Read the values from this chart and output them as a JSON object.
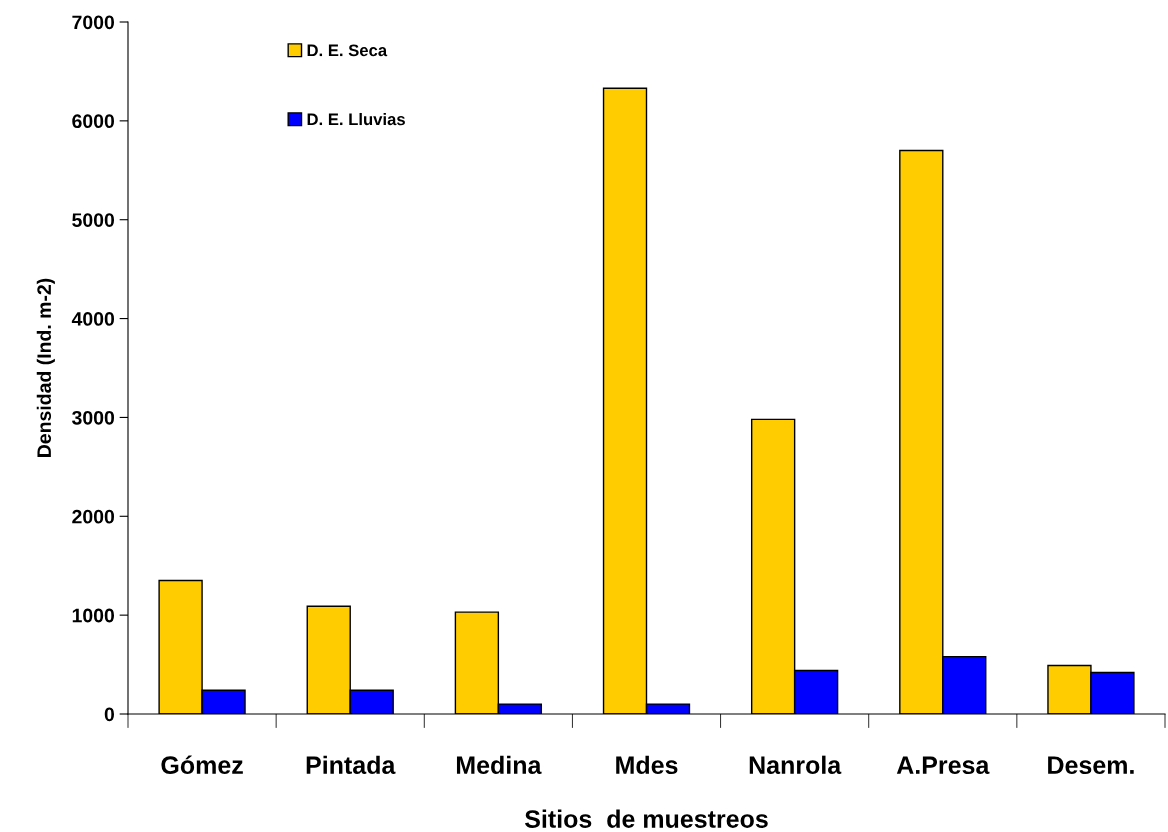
{
  "chart_data": {
    "type": "bar",
    "xlabel": "Sitios  de muestreos",
    "ylabel": "Densidad (Ind. m-2)",
    "categories": [
      "Gómez",
      "Pintada",
      "Medina",
      "Mdes",
      "Nanrola",
      "A.Presa",
      "Desem."
    ],
    "series": [
      {
        "name": "D. E. Seca",
        "color": "#ffcc00",
        "values": [
          1350,
          1090,
          1030,
          6330,
          2980,
          5700,
          490
        ]
      },
      {
        "name": "D. E. Lluvias",
        "color": "#0000ff",
        "values": [
          240,
          240,
          100,
          100,
          440,
          580,
          420
        ]
      }
    ],
    "ylim": [
      0,
      7000
    ],
    "yticks": [
      0,
      1000,
      2000,
      3000,
      4000,
      5000,
      6000,
      7000
    ],
    "grid": false,
    "legend": "top left"
  }
}
